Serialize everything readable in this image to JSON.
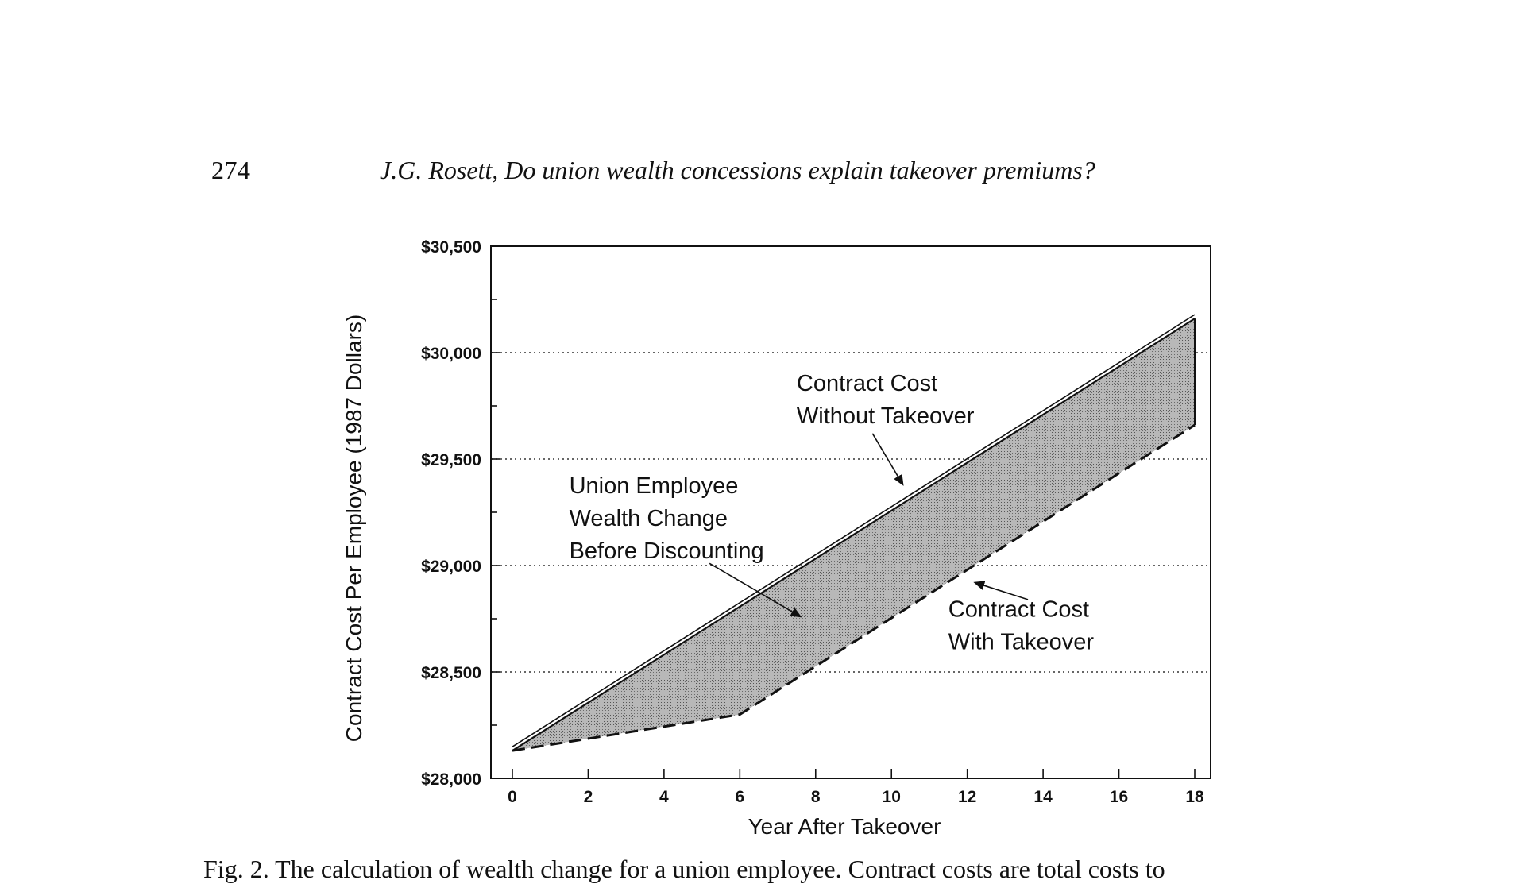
{
  "header": {
    "page_number": "274",
    "running_title": "J.G. Rosett, Do union wealth concessions explain takeover premiums?"
  },
  "caption": {
    "label": "Fig. 2.",
    "text": "The calculation of wealth change for a union employee. Contract costs are total costs to"
  },
  "chart_data": {
    "type": "area",
    "title": "",
    "xlabel": "Year After Takeover",
    "ylabel": "Contract Cost Per Employee (1987 Dollars)",
    "xlim": [
      0,
      18
    ],
    "ylim": [
      28000,
      30500
    ],
    "x_ticks": [
      0,
      2,
      4,
      6,
      8,
      10,
      12,
      14,
      16,
      18
    ],
    "x_tick_labels": [
      "0",
      "2",
      "4",
      "6",
      "8",
      "10",
      "12",
      "14",
      "16",
      "18"
    ],
    "y_ticks": [
      28000,
      28500,
      29000,
      29500,
      30000,
      30500
    ],
    "y_tick_labels": [
      "$28,000",
      "$28,500",
      "$29,000",
      "$29,500",
      "$30,000",
      "$30,500"
    ],
    "grid": "horizontal-dotted",
    "series": [
      {
        "name": "Contract Cost Without Takeover",
        "style": "solid-double",
        "x": [
          0,
          18
        ],
        "values": [
          28130,
          30160
        ]
      },
      {
        "name": "Contract Cost With Takeover",
        "style": "dashed",
        "x": [
          0,
          6,
          18
        ],
        "values": [
          28130,
          28300,
          29660
        ]
      }
    ],
    "shaded_region": {
      "between": [
        "Contract Cost Without Takeover",
        "Contract Cost With Takeover"
      ],
      "label": "Union Employee Wealth Change Before Discounting"
    },
    "annotations": [
      {
        "lines": [
          "Contract Cost",
          "Without Takeover"
        ],
        "text_at": [
          7.5,
          29820
        ],
        "arrow_from": [
          9.5,
          29620
        ],
        "arrow_to": [
          10.3,
          29380
        ]
      },
      {
        "lines": [
          "Union Employee",
          "Wealth Change",
          "Before Discounting"
        ],
        "text_at": [
          1.5,
          29340
        ],
        "arrow_from": [
          5.2,
          29010
        ],
        "arrow_to": [
          7.6,
          28760
        ]
      },
      {
        "lines": [
          "Contract Cost",
          "With Takeover"
        ],
        "text_at": [
          11.5,
          28760
        ],
        "arrow_from": [
          13.6,
          28840
        ],
        "arrow_to": [
          12.2,
          28920
        ]
      }
    ],
    "colors": {
      "fill": "#9a9a9a",
      "line": "#111111",
      "grid": "#333333"
    }
  }
}
